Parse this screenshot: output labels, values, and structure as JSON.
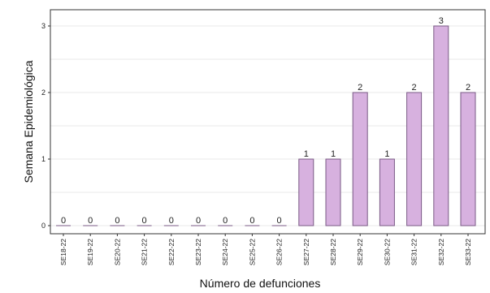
{
  "chart_data": {
    "type": "bar",
    "categories": [
      "SE18-22",
      "SE19-22",
      "SE20-22",
      "SE21-22",
      "SE22-22",
      "SE23-22",
      "SE24-22",
      "SE25-22",
      "SE26-22",
      "SE27-22",
      "SE28-22",
      "SE29-22",
      "SE30-22",
      "SE31-22",
      "SE32-22",
      "SE33-22"
    ],
    "values": [
      0,
      0,
      0,
      0,
      0,
      0,
      0,
      0,
      0,
      1,
      1,
      2,
      1,
      2,
      3,
      2
    ],
    "data_labels": [
      "0",
      "0",
      "0",
      "0",
      "0",
      "0",
      "0",
      "0",
      "0",
      "1",
      "1",
      "2",
      "1",
      "2",
      "3",
      "2"
    ],
    "title": "",
    "xlabel": "Número de defunciones",
    "ylabel": "Semana Epidemiológica",
    "ylim": [
      0,
      3
    ],
    "yticks": [
      "0",
      "1",
      "2",
      "3"
    ],
    "grid": true,
    "legend": "none",
    "colors": {
      "bar_fill": "#d7b1df",
      "bar_stroke": "#7a5a86",
      "grid": "#e8e8e8",
      "frame": "#333333"
    }
  }
}
